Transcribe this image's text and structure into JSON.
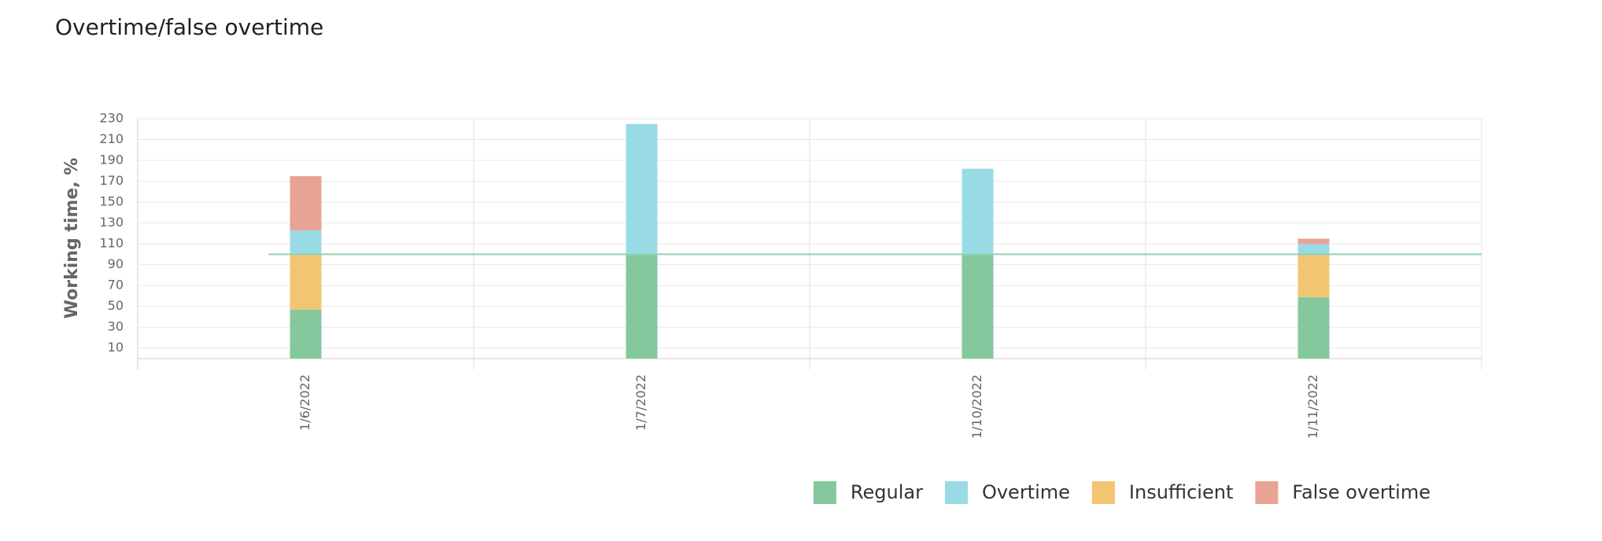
{
  "chart_data": {
    "type": "stacked-bar",
    "title": "Overtime/false overtime",
    "y_label": "Working time, %",
    "categories": [
      "1/6/2022",
      "1/7/2022",
      "1/10/2022",
      "1/11/2022"
    ],
    "series": [
      {
        "name": "Regular",
        "color": "#86c89e",
        "values": [
          47,
          100,
          100,
          59
        ]
      },
      {
        "name": "Overtime",
        "color": "#99dbe5",
        "values": [
          23,
          125,
          82,
          10
        ]
      },
      {
        "name": "Insufficient",
        "color": "#f2c572",
        "values": [
          53,
          0,
          0,
          41
        ]
      },
      {
        "name": "False overtime",
        "color": "#e9a394",
        "values": [
          52,
          0,
          0,
          5
        ]
      }
    ],
    "reference_line": 100,
    "reference_color": "#8fd3b0",
    "ylim": [
      0,
      230
    ],
    "yticks": [
      10,
      30,
      50,
      70,
      90,
      110,
      130,
      150,
      170,
      190,
      210,
      230
    ],
    "grid": true
  }
}
